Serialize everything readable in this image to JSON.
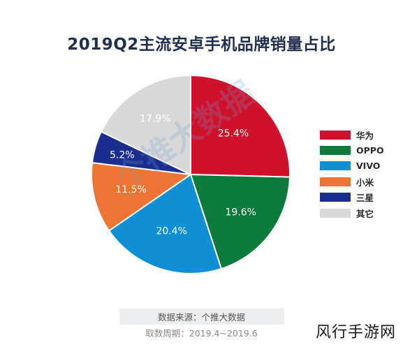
{
  "chart_data": {
    "type": "pie",
    "title": "2019Q2主流安卓手机品牌销量占比",
    "slices": [
      {
        "name": "华为",
        "value": 25.4,
        "label": "25.4%",
        "color": "#d0112b"
      },
      {
        "name": "OPPO",
        "value": 19.6,
        "label": "19.6%",
        "color": "#0b7a3b"
      },
      {
        "name": "VIVO",
        "value": 20.4,
        "label": "20.4%",
        "color": "#0e8fd6"
      },
      {
        "name": "小米",
        "value": 11.5,
        "label": "11.5%",
        "color": "#ee7434"
      },
      {
        "name": "三星",
        "value": 5.2,
        "label": "5.2%",
        "color": "#1b2d8f"
      },
      {
        "name": "其它",
        "value": 17.9,
        "label": "17.9%",
        "color": "#d8d8d8"
      }
    ],
    "legend_position": "right"
  },
  "source": {
    "label": "数据来源：个推大数据",
    "period": "取数周期：2019.4~2019.6"
  },
  "watermark": {
    "center_text": "个推大数据",
    "corner_text": "风行手游网"
  }
}
